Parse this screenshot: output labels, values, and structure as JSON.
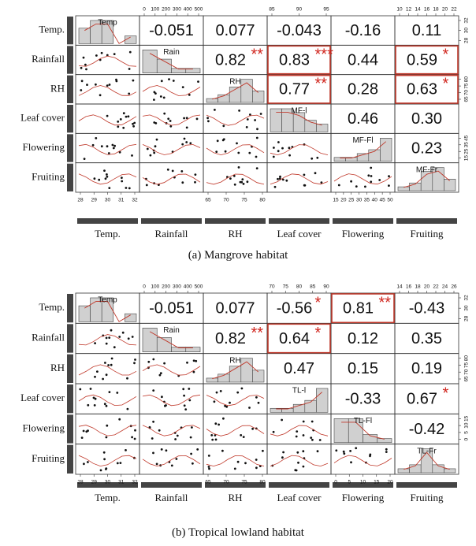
{
  "chart_data": [
    {
      "type": "scatter-matrix",
      "caption": "(a) Mangrove habitat",
      "variables": [
        "Temp.",
        "Rainfall",
        "RH",
        "Leaf cover",
        "Flowering",
        "Fruiting"
      ],
      "diag_labels": [
        "Temp",
        "Rain",
        "RH",
        "MF-l",
        "MF-Fl",
        "MF-Fr"
      ],
      "diag_hist": [
        [
          4,
          6,
          6,
          0,
          2
        ],
        [
          5,
          3,
          1,
          1
        ],
        [
          1,
          2,
          4,
          6,
          3
        ],
        [
          6,
          6,
          5,
          3,
          2
        ],
        [
          1,
          1,
          2,
          3,
          6
        ],
        [
          1,
          2,
          5,
          6,
          3
        ]
      ],
      "correlations": [
        {
          "row": 0,
          "col": 1,
          "value": "-0.051",
          "stars": ""
        },
        {
          "row": 0,
          "col": 2,
          "value": "0.077",
          "stars": ""
        },
        {
          "row": 0,
          "col": 3,
          "value": "-0.043",
          "stars": ""
        },
        {
          "row": 0,
          "col": 4,
          "value": "-0.16",
          "stars": ""
        },
        {
          "row": 0,
          "col": 5,
          "value": "0.11",
          "stars": ""
        },
        {
          "row": 1,
          "col": 2,
          "value": "0.82",
          "stars": "**"
        },
        {
          "row": 1,
          "col": 3,
          "value": "0.83",
          "stars": "***",
          "box": true
        },
        {
          "row": 1,
          "col": 4,
          "value": "0.44",
          "stars": ""
        },
        {
          "row": 1,
          "col": 5,
          "value": "0.59",
          "stars": "*",
          "box": true
        },
        {
          "row": 2,
          "col": 3,
          "value": "0.77",
          "stars": "**",
          "box": true
        },
        {
          "row": 2,
          "col": 4,
          "value": "0.28",
          "stars": ""
        },
        {
          "row": 2,
          "col": 5,
          "value": "0.63",
          "stars": "*",
          "box": true
        },
        {
          "row": 3,
          "col": 4,
          "value": "0.46",
          "stars": ""
        },
        {
          "row": 3,
          "col": 5,
          "value": "0.30",
          "stars": ""
        },
        {
          "row": 4,
          "col": 5,
          "value": "0.23",
          "stars": ""
        }
      ],
      "top_ticks": [
        {
          "col": 1,
          "labels": [
            "0",
            "100",
            "200",
            "300",
            "400",
            "500"
          ]
        },
        {
          "col": 3,
          "labels": [
            "85",
            "90",
            "95"
          ]
        },
        {
          "col": 5,
          "labels": [
            "10",
            "12",
            "14",
            "16",
            "18",
            "20",
            "22"
          ]
        }
      ],
      "bottom_ticks": [
        {
          "col": 0,
          "labels": [
            "28",
            "29",
            "30",
            "31",
            "32"
          ]
        },
        {
          "col": 2,
          "labels": [
            "65",
            "70",
            "75",
            "80"
          ]
        },
        {
          "col": 4,
          "labels": [
            "15",
            "20",
            "25",
            "30",
            "35",
            "40",
            "45",
            "50"
          ]
        }
      ],
      "right_ticks": [
        {
          "row": 0,
          "labels": [
            "32",
            "30",
            "28"
          ]
        },
        {
          "row": 2,
          "labels": [
            "80",
            "75",
            "70",
            "65"
          ]
        },
        {
          "row": 4,
          "labels": [
            "45",
            "35",
            "25",
            "15"
          ]
        }
      ]
    },
    {
      "type": "scatter-matrix",
      "caption": "(b) Tropical lowland habitat",
      "variables": [
        "Temp.",
        "Rainfall",
        "RH",
        "Leaf cover",
        "Flowering",
        "Fruiting"
      ],
      "diag_labels": [
        "Temp",
        "Rain",
        "RH",
        "TL-l",
        "TL-Fl",
        "TL-Fr"
      ],
      "diag_hist": [
        [
          4,
          6,
          6,
          0,
          2
        ],
        [
          5,
          3,
          1,
          1
        ],
        [
          1,
          2,
          4,
          6,
          3
        ],
        [
          1,
          1,
          2,
          3,
          6
        ],
        [
          6,
          6,
          2,
          1
        ],
        [
          1,
          2,
          6,
          2,
          1
        ]
      ],
      "correlations": [
        {
          "row": 0,
          "col": 1,
          "value": "-0.051",
          "stars": ""
        },
        {
          "row": 0,
          "col": 2,
          "value": "0.077",
          "stars": ""
        },
        {
          "row": 0,
          "col": 3,
          "value": "-0.56",
          "stars": "*"
        },
        {
          "row": 0,
          "col": 4,
          "value": "0.81",
          "stars": "**",
          "box": true
        },
        {
          "row": 0,
          "col": 5,
          "value": "-0.43",
          "stars": ""
        },
        {
          "row": 1,
          "col": 2,
          "value": "0.82",
          "stars": "**"
        },
        {
          "row": 1,
          "col": 3,
          "value": "0.64",
          "stars": "*",
          "box": true
        },
        {
          "row": 1,
          "col": 4,
          "value": "0.12",
          "stars": ""
        },
        {
          "row": 1,
          "col": 5,
          "value": "0.35",
          "stars": ""
        },
        {
          "row": 2,
          "col": 3,
          "value": "0.47",
          "stars": ""
        },
        {
          "row": 2,
          "col": 4,
          "value": "0.15",
          "stars": ""
        },
        {
          "row": 2,
          "col": 5,
          "value": "0.19",
          "stars": ""
        },
        {
          "row": 3,
          "col": 4,
          "value": "-0.33",
          "stars": ""
        },
        {
          "row": 3,
          "col": 5,
          "value": "0.67",
          "stars": "*"
        },
        {
          "row": 4,
          "col": 5,
          "value": "-0.42",
          "stars": ""
        }
      ],
      "top_ticks": [
        {
          "col": 1,
          "labels": [
            "0",
            "100",
            "200",
            "300",
            "400",
            "500"
          ]
        },
        {
          "col": 3,
          "labels": [
            "70",
            "75",
            "80",
            "85",
            "90"
          ]
        },
        {
          "col": 5,
          "labels": [
            "14",
            "16",
            "18",
            "20",
            "22",
            "24",
            "26"
          ]
        }
      ],
      "bottom_ticks": [
        {
          "col": 0,
          "labels": [
            "28",
            "29",
            "30",
            "31",
            "32"
          ]
        },
        {
          "col": 2,
          "labels": [
            "65",
            "70",
            "75",
            "80"
          ]
        },
        {
          "col": 4,
          "labels": [
            "0",
            "5",
            "10",
            "15",
            "20"
          ]
        }
      ],
      "right_ticks": [
        {
          "row": 0,
          "labels": [
            "32",
            "30",
            "28"
          ]
        },
        {
          "row": 2,
          "labels": [
            "80",
            "75",
            "70",
            "65"
          ]
        },
        {
          "row": 4,
          "labels": [
            "15",
            "10",
            "5",
            "0"
          ]
        }
      ]
    }
  ]
}
